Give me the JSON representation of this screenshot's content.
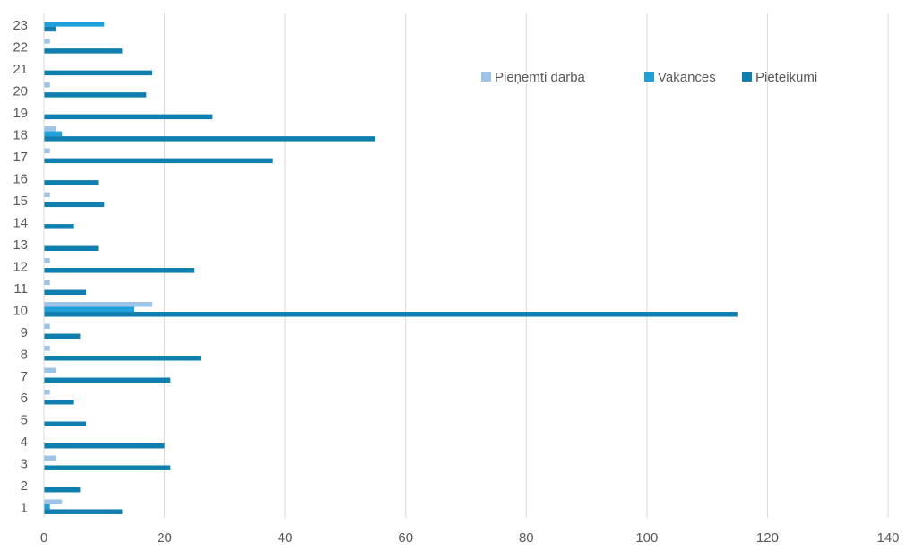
{
  "chart_data": {
    "type": "bar",
    "orientation": "horizontal",
    "title": "",
    "xlabel": "",
    "ylabel": "",
    "categories": [
      "1",
      "2",
      "3",
      "4",
      "5",
      "6",
      "7",
      "8",
      "9",
      "10",
      "11",
      "12",
      "13",
      "14",
      "15",
      "16",
      "17",
      "18",
      "19",
      "20",
      "21",
      "22",
      "23"
    ],
    "xlim": [
      0,
      140
    ],
    "x_ticks": [
      0,
      20,
      40,
      60,
      80,
      100,
      120,
      140
    ],
    "grid": "vertical",
    "legend_position": "top-right",
    "series": [
      {
        "name": "Pieņemti darbā",
        "color": "#9DC3E6",
        "values": [
          3,
          0,
          2,
          0,
          0,
          1,
          2,
          1,
          1,
          18,
          1,
          1,
          0,
          0,
          1,
          0,
          1,
          2,
          0,
          1,
          0,
          1,
          0
        ]
      },
      {
        "name": "Vakances",
        "color": "#1FA0D8",
        "values": [
          1,
          0,
          0,
          0,
          0,
          0,
          0,
          0,
          0,
          15,
          0,
          0,
          0,
          0,
          0,
          0,
          0,
          3,
          0,
          0,
          0,
          0,
          10
        ]
      },
      {
        "name": "Pieteikumi",
        "color": "#0E7FAE",
        "values": [
          13,
          6,
          21,
          20,
          7,
          5,
          21,
          26,
          6,
          115,
          7,
          25,
          9,
          5,
          10,
          9,
          38,
          55,
          28,
          17,
          18,
          13,
          2
        ]
      }
    ]
  }
}
